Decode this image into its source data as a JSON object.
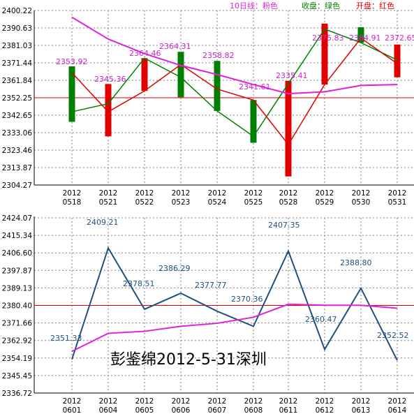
{
  "chart_data": [
    {
      "type": "candlestick",
      "legend": [
        {
          "text": "10日线：粉色",
          "color": "#e020e0"
        },
        {
          "text": "收盘：绿色",
          "color": "#008000"
        },
        {
          "text": "开盘：红色",
          "color": "#e00000"
        }
      ],
      "y_ticks": [
        "2400.22",
        "2390.63",
        "2381.03",
        "2371.44",
        "2361.84",
        "2352.25",
        "2342.65",
        "2333.06",
        "2323.46",
        "2313.87",
        "2304.27"
      ],
      "ylim": [
        2304.27,
        2400.22
      ],
      "reference_line": 2352.25,
      "categories": [
        "2012\n0518",
        "2012\n0521",
        "2012\n0522",
        "2012\n0523",
        "2012\n0524",
        "2012\n0525",
        "2012\n0528",
        "2012\n0529",
        "2012\n0530",
        "2012\n0531"
      ],
      "open": [
        2366.0,
        2344.5,
        2356.0,
        2370.5,
        2357.0,
        2351.0,
        2326.5,
        2359.5,
        2385.0,
        2371.0
      ],
      "close": [
        2344.5,
        2349.0,
        2374.0,
        2363.5,
        2345.0,
        2331.0,
        2360.0,
        2390.0,
        2382.5,
        2373.0
      ],
      "body_high": [
        2369.5,
        2359.8,
        2374.0,
        2377.5,
        2372.5,
        2351.0,
        2361.5,
        2393.0,
        2391.0,
        2381.5
      ],
      "body_low": [
        2339.0,
        2331.0,
        2356.0,
        2352.5,
        2345.0,
        2327.5,
        2309.0,
        2359.5,
        2382.5,
        2363.5
      ],
      "ma10": [
        2396.5,
        2384.5,
        2376.5,
        2370.0,
        2365.0,
        2359.5,
        2354.5,
        2355.5,
        2359.0,
        2359.5
      ],
      "data_labels": [
        "2353.92",
        "2345.36",
        "2364.46",
        "2364.31",
        "2358.82",
        "2341.61",
        "2335.41",
        "2375.83",
        "2384.91",
        "2372.65"
      ]
    },
    {
      "type": "line",
      "y_ticks": [
        "2424.07",
        "2415.34",
        "2406.60",
        "2397.87",
        "2389.13",
        "2380.40",
        "2371.66",
        "2362.92",
        "2354.19",
        "2345.45",
        "2336.72"
      ],
      "ylim": [
        2336.72,
        2424.07
      ],
      "reference_line": 2380.4,
      "categories": [
        "2012\n0601",
        "2012\n0604",
        "2012\n0605",
        "2012\n0606",
        "2012\n0607",
        "2012\n0608",
        "2012\n0611",
        "2012\n0612",
        "2012\n0613",
        "2012\n0614"
      ],
      "series": [
        {
          "values": [
            2353.5,
            2409.0,
            2378.5,
            2386.5,
            2377.5,
            2370.0,
            2407.5,
            2358.5,
            2389.0,
            2353.0
          ],
          "color": "#205080"
        },
        {
          "values": [
            2357.5,
            2366.5,
            2367.5,
            2370.0,
            2371.5,
            2374.5,
            2381.0,
            2380.5,
            2380.5,
            2379.0
          ],
          "color": "#e020e0"
        }
      ],
      "data_labels": [
        "2351.33",
        "2409.21",
        "2378.51",
        "2386.29",
        "2377.77",
        "2370.36",
        "2407.35",
        "2360.47",
        "2388.80",
        "2352.52"
      ],
      "watermark": "彭鉴绵2012-5-31深圳"
    }
  ]
}
